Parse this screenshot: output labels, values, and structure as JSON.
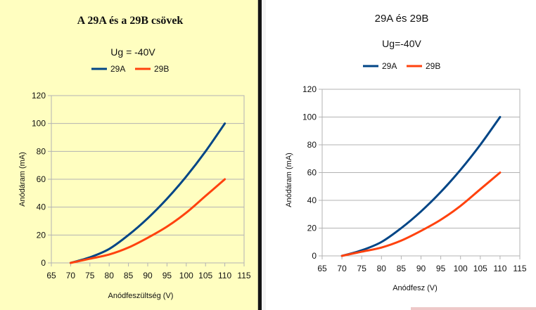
{
  "chart_data": [
    {
      "type": "line",
      "title": "A 29A és a 29B csövek",
      "subtitle": "Ug = -40V",
      "xlabel": "Anódfeszültség (V)",
      "ylabel": "Anódáram (mA)",
      "xlim": [
        65,
        115
      ],
      "ylim": [
        0,
        120
      ],
      "xticks": [
        65,
        70,
        75,
        80,
        85,
        90,
        95,
        100,
        105,
        110,
        115
      ],
      "yticks": [
        0,
        20,
        40,
        60,
        80,
        100,
        120
      ],
      "legend": "top",
      "plot_background": "#fffec0",
      "series": [
        {
          "name": "29A",
          "color": "#004586",
          "x": [
            70,
            75,
            80,
            85,
            90,
            95,
            100,
            105,
            110
          ],
          "y": [
            0,
            4,
            10,
            20,
            32,
            46,
            62,
            80,
            100
          ]
        },
        {
          "name": "29B",
          "color": "#ff420e",
          "x": [
            70,
            75,
            80,
            85,
            90,
            95,
            100,
            105,
            110
          ],
          "y": [
            0,
            3,
            6,
            11,
            18,
            26,
            36,
            48,
            60
          ]
        }
      ]
    },
    {
      "type": "line",
      "title": "29A és 29B",
      "subtitle": "Ug=-40V",
      "xlabel": "Anódfesz (V)",
      "ylabel": "Anódáram (mA)",
      "xlim": [
        65,
        115
      ],
      "ylim": [
        0,
        120
      ],
      "xticks": [
        65,
        70,
        75,
        80,
        85,
        90,
        95,
        100,
        105,
        110,
        115
      ],
      "yticks": [
        0,
        20,
        40,
        60,
        80,
        100,
        120
      ],
      "legend": "top",
      "plot_background": "#ffffff",
      "series": [
        {
          "name": "29A",
          "color": "#004586",
          "x": [
            70,
            75,
            80,
            85,
            90,
            95,
            100,
            105,
            110
          ],
          "y": [
            0,
            4,
            10,
            20,
            32,
            46,
            62,
            80,
            100
          ]
        },
        {
          "name": "29B",
          "color": "#ff420e",
          "x": [
            70,
            75,
            80,
            85,
            90,
            95,
            100,
            105,
            110
          ],
          "y": [
            0,
            3,
            6,
            11,
            18,
            26,
            36,
            48,
            60
          ]
        }
      ]
    }
  ]
}
